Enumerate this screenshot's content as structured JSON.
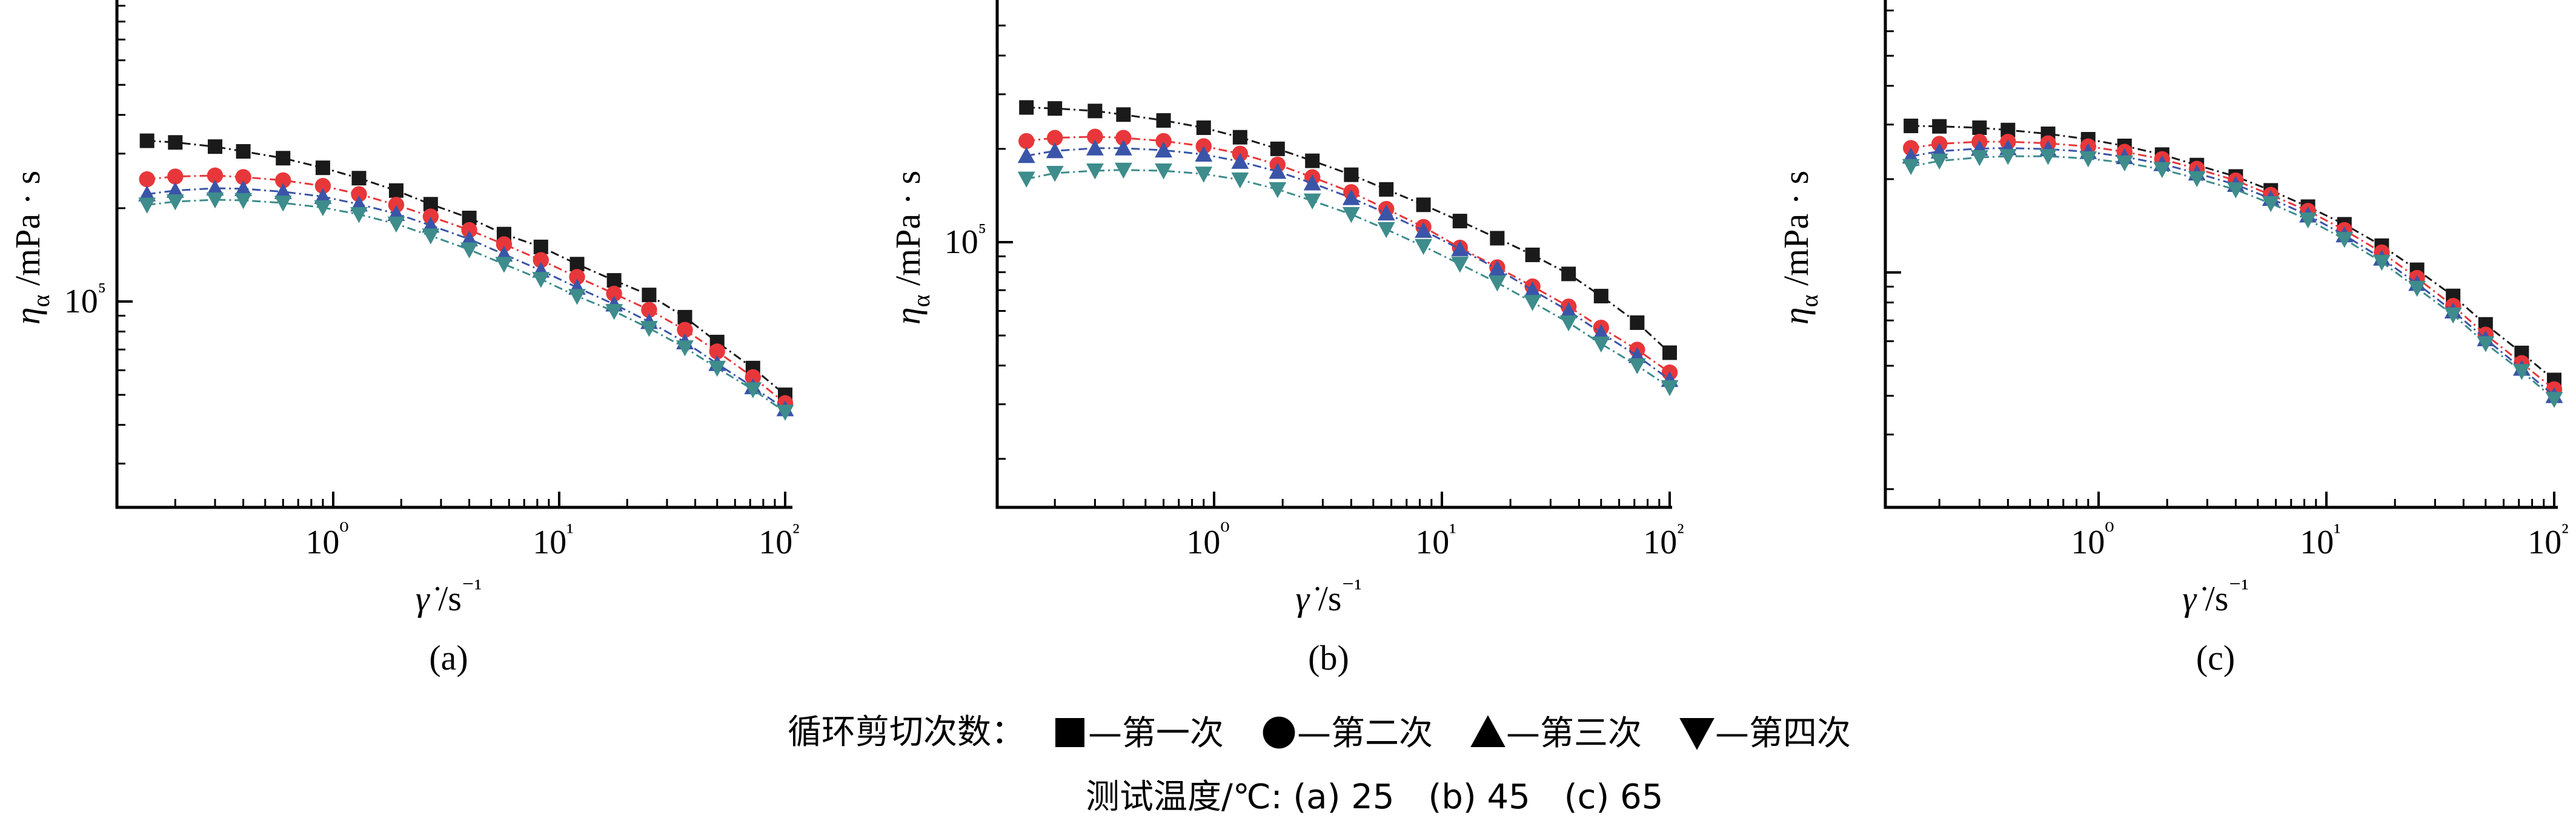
{
  "chart_data": [
    {
      "type": "line",
      "panel_label": "(a)",
      "xlabel": "γ̇ /s⁻¹",
      "ylabel": "ηα /mPa · s",
      "x_scale": "log",
      "y_scale": "log",
      "x_ticks": [
        {
          "value": 1,
          "label": "10⁰"
        },
        {
          "value": 10,
          "label": "10¹"
        },
        {
          "value": 100,
          "label": "10²"
        }
      ],
      "y_ticks": [
        {
          "value": 100000,
          "label": "10⁵"
        }
      ],
      "grid": false,
      "series": [
        {
          "name": "第一次",
          "marker": "square",
          "color": "#1a1a1a",
          "x": [
            0.15,
            0.2,
            0.3,
            0.4,
            0.6,
            0.9,
            1.3,
            1.9,
            2.7,
            4,
            5.7,
            8.3,
            12,
            17.5,
            25,
            36,
            50,
            72,
            100
          ],
          "y": [
            330000,
            326000,
            316000,
            305000,
            290000,
            270000,
            250000,
            228000,
            206000,
            186000,
            165000,
            150000,
            132000,
            117000,
            105000,
            89000,
            74000,
            61000,
            50000
          ]
        },
        {
          "name": "第二次",
          "marker": "circle",
          "color": "#e8373a",
          "x": [
            0.15,
            0.2,
            0.3,
            0.4,
            0.6,
            0.9,
            1.3,
            1.9,
            2.7,
            4,
            5.7,
            8.3,
            12,
            17.5,
            25,
            36,
            50,
            72,
            100
          ],
          "y": [
            248000,
            253000,
            255000,
            252000,
            246000,
            236000,
            222000,
            205000,
            188000,
            170000,
            153000,
            136000,
            120000,
            106000,
            94000,
            81000,
            69000,
            57000,
            47000
          ]
        },
        {
          "name": "第三次",
          "marker": "triangle-up",
          "color": "#3a55a8",
          "x": [
            0.15,
            0.2,
            0.3,
            0.4,
            0.6,
            0.9,
            1.3,
            1.9,
            2.7,
            4,
            5.7,
            8.3,
            12,
            17.5,
            25,
            36,
            50,
            72,
            100
          ],
          "y": [
            222000,
            228000,
            232000,
            231000,
            226000,
            218000,
            206000,
            192000,
            176000,
            159000,
            142000,
            126000,
            111000,
            98000,
            86000,
            74000,
            63000,
            53000,
            45000
          ]
        },
        {
          "name": "第四次",
          "marker": "triangle-down",
          "color": "#3e8c8c",
          "x": [
            0.15,
            0.2,
            0.3,
            0.4,
            0.6,
            0.9,
            1.3,
            1.9,
            2.7,
            4,
            5.7,
            8.3,
            12,
            17.5,
            25,
            36,
            50,
            72,
            100
          ],
          "y": [
            205000,
            210000,
            213000,
            212000,
            208000,
            201000,
            191000,
            178000,
            163000,
            147000,
            132000,
            118000,
            104000,
            93000,
            82000,
            71000,
            61000,
            52000,
            44000
          ]
        }
      ]
    },
    {
      "type": "line",
      "panel_label": "(b)",
      "xlabel": "γ̇ /s⁻¹",
      "ylabel": "ηα /mPa · s",
      "x_scale": "log",
      "y_scale": "log",
      "x_ticks": [
        {
          "value": 1,
          "label": "10⁰"
        },
        {
          "value": 10,
          "label": "10¹"
        },
        {
          "value": 100,
          "label": "10²"
        }
      ],
      "y_ticks": [
        {
          "value": 100000,
          "label": "10⁵"
        }
      ],
      "grid": false,
      "series": [
        {
          "name": "第一次",
          "marker": "square",
          "color": "#1a1a1a",
          "x": [
            0.15,
            0.2,
            0.3,
            0.4,
            0.6,
            0.9,
            1.3,
            1.9,
            2.7,
            4,
            5.7,
            8.3,
            12,
            17.5,
            25,
            36,
            50,
            72,
            100
          ],
          "y": [
            272000,
            270000,
            265000,
            258000,
            247000,
            234000,
            218000,
            200000,
            183000,
            165000,
            148000,
            132000,
            117000,
            103000,
            91000,
            79000,
            67000,
            55000,
            44000
          ]
        },
        {
          "name": "第二次",
          "marker": "circle",
          "color": "#e8373a",
          "x": [
            0.15,
            0.2,
            0.3,
            0.4,
            0.6,
            0.9,
            1.3,
            1.9,
            2.7,
            4,
            5.7,
            8.3,
            12,
            17.5,
            25,
            36,
            50,
            72,
            100
          ],
          "y": [
            212000,
            217000,
            219000,
            217000,
            212000,
            204000,
            193000,
            178000,
            162000,
            145000,
            128000,
            112000,
            96000,
            83000,
            72000,
            62000,
            53000,
            45000,
            38000
          ]
        },
        {
          "name": "第三次",
          "marker": "triangle-up",
          "color": "#3a55a8",
          "x": [
            0.15,
            0.2,
            0.3,
            0.4,
            0.6,
            0.9,
            1.3,
            1.9,
            2.7,
            4,
            5.7,
            8.3,
            12,
            17.5,
            25,
            36,
            50,
            72,
            100
          ],
          "y": [
            190000,
            197000,
            201000,
            201000,
            198000,
            192000,
            182000,
            169000,
            155000,
            139000,
            124000,
            109000,
            95000,
            82000,
            70000,
            60000,
            51000,
            43000,
            36000
          ]
        },
        {
          "name": "第四次",
          "marker": "triangle-down",
          "color": "#3e8c8c",
          "x": [
            0.15,
            0.2,
            0.3,
            0.4,
            0.6,
            0.9,
            1.3,
            1.9,
            2.7,
            4,
            5.7,
            8.3,
            12,
            17.5,
            25,
            36,
            50,
            72,
            100
          ],
          "y": [
            160000,
            167000,
            170000,
            171000,
            170000,
            166000,
            159000,
            148000,
            136000,
            123000,
            110000,
            97000,
            85000,
            74000,
            64000,
            55000,
            47000,
            40000,
            34000
          ]
        }
      ]
    },
    {
      "type": "line",
      "panel_label": "(c)",
      "xlabel": "γ̇ /s⁻¹",
      "ylabel": "ηα /mPa · s",
      "x_scale": "log",
      "y_scale": "log",
      "x_ticks": [
        {
          "value": 1,
          "label": "10⁰"
        },
        {
          "value": 10,
          "label": "10¹"
        },
        {
          "value": 100,
          "label": "10²"
        }
      ],
      "y_ticks": [],
      "grid": false,
      "series": [
        {
          "name": "第一次",
          "marker": "square",
          "color": "#1a1a1a",
          "x": [
            0.15,
            0.2,
            0.3,
            0.4,
            0.6,
            0.9,
            1.3,
            1.9,
            2.7,
            4,
            5.7,
            8.3,
            12,
            17.5,
            25,
            36,
            50,
            72,
            100
          ],
          "y": [
            297000,
            296000,
            293000,
            288000,
            280000,
            269000,
            256000,
            240000,
            222000,
            204000,
            184000,
            163000,
            143000,
            122000,
            102000,
            84000,
            68000,
            55000,
            45000
          ]
        },
        {
          "name": "第二次",
          "marker": "circle",
          "color": "#e8373a",
          "x": [
            0.15,
            0.2,
            0.3,
            0.4,
            0.6,
            0.9,
            1.3,
            1.9,
            2.7,
            4,
            5.7,
            8.3,
            12,
            17.5,
            25,
            36,
            50,
            72,
            100
          ],
          "y": [
            252000,
            260000,
            264000,
            264000,
            261000,
            255000,
            245000,
            232000,
            216000,
            198000,
            178000,
            158000,
            137000,
            116000,
            96000,
            78000,
            63000,
            51000,
            42000
          ]
        },
        {
          "name": "第三次",
          "marker": "triangle-up",
          "color": "#3a55a8",
          "x": [
            0.15,
            0.2,
            0.3,
            0.4,
            0.6,
            0.9,
            1.3,
            1.9,
            2.7,
            4,
            5.7,
            8.3,
            12,
            17.5,
            25,
            36,
            50,
            72,
            100
          ],
          "y": [
            237000,
            246000,
            251000,
            252000,
            250000,
            245000,
            236000,
            224000,
            209000,
            192000,
            173000,
            153000,
            132000,
            111000,
            92000,
            75000,
            61000,
            49000,
            40000
          ]
        },
        {
          "name": "第四次",
          "marker": "triangle-down",
          "color": "#3e8c8c",
          "x": [
            0.15,
            0.2,
            0.3,
            0.4,
            0.6,
            0.9,
            1.3,
            1.9,
            2.7,
            4,
            5.7,
            8.3,
            12,
            17.5,
            25,
            36,
            50,
            72,
            100
          ],
          "y": [
            220000,
            229000,
            235000,
            237000,
            237000,
            233000,
            226000,
            215000,
            201000,
            185000,
            167000,
            148000,
            128000,
            108000,
            89000,
            73000,
            59000,
            48000,
            39000
          ]
        }
      ]
    }
  ],
  "legend": {
    "title": "循环剪切次数：",
    "items": [
      {
        "marker": "square",
        "label": "—第一次"
      },
      {
        "marker": "circle",
        "label": "—第二次"
      },
      {
        "marker": "triangle-up",
        "label": "—第三次"
      },
      {
        "marker": "triangle-down",
        "label": "—第四次"
      }
    ],
    "temperature_note": "测试温度/℃: (a) 25　(b) 45　(c) 65"
  }
}
